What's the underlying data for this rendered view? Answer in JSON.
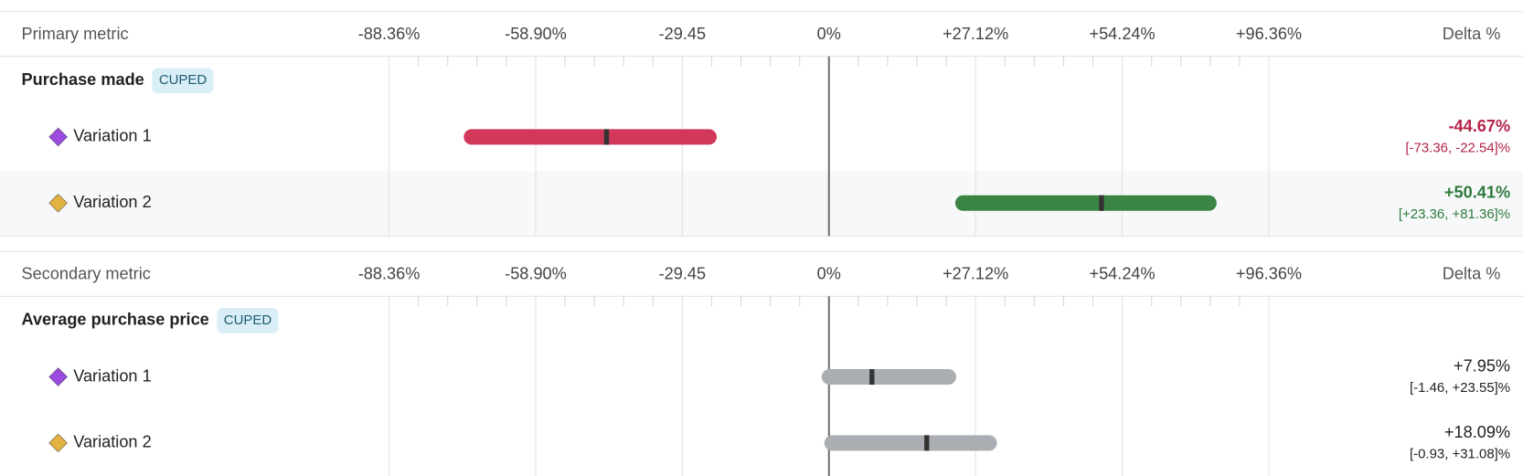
{
  "sections": [
    {
      "header": "Primary metric",
      "delta_header": "Delta %",
      "axis_ticks": [
        {
          "value": -88.36,
          "label": "-88.36%"
        },
        {
          "value": -58.9,
          "label": "-58.90%"
        },
        {
          "value": -29.45,
          "label": "-29.45"
        },
        {
          "value": 0,
          "label": "0%"
        },
        {
          "value": 27.12,
          "label": "+27.12%"
        },
        {
          "value": 54.24,
          "label": "+54.24%"
        },
        {
          "value": 96.36,
          "label": "+96.36%"
        }
      ],
      "metric": {
        "name": "Purchase made",
        "badge": "CUPED"
      },
      "variations": [
        {
          "name": "Variation 1",
          "marker_color": "#9b4be0",
          "bar_color": "#d1385a",
          "text_color": "#b5254a",
          "bold": true,
          "ci": [
            -73.36,
            -22.54
          ],
          "delta": -44.67,
          "delta_label": "-44.67%",
          "ci_label": "[-73.36, -22.54]%"
        },
        {
          "name": "Variation 2",
          "marker_color": "#e3b341",
          "bar_color": "#3a8444",
          "text_color": "#2e7a3b",
          "bold": true,
          "ci": [
            23.36,
            81.36
          ],
          "delta": 50.41,
          "delta_label": "+50.41%",
          "ci_label": "[+23.36, +81.36]%"
        }
      ]
    },
    {
      "header": "Secondary metric",
      "delta_header": "Delta %",
      "axis_ticks": [
        {
          "value": -88.36,
          "label": "-88.36%"
        },
        {
          "value": -58.9,
          "label": "-58.90%"
        },
        {
          "value": -29.45,
          "label": "-29.45"
        },
        {
          "value": 0,
          "label": "0%"
        },
        {
          "value": 27.12,
          "label": "+27.12%"
        },
        {
          "value": 54.24,
          "label": "+54.24%"
        },
        {
          "value": 96.36,
          "label": "+96.36%"
        }
      ],
      "metric": {
        "name": "Average purchase price",
        "badge": "CUPED"
      },
      "variations": [
        {
          "name": "Variation 1",
          "marker_color": "#9b4be0",
          "bar_color": "#aaaeb2",
          "text_color": "#222222",
          "bold": false,
          "ci": [
            -1.46,
            23.55
          ],
          "delta": 7.95,
          "delta_label": "+7.95%",
          "ci_label": "[-1.46, +23.55]%"
        },
        {
          "name": "Variation 2",
          "marker_color": "#e3b341",
          "bar_color": "#aaaeb2",
          "text_color": "#222222",
          "bold": false,
          "ci": [
            -0.93,
            31.08
          ],
          "delta": 18.09,
          "delta_label": "+18.09%",
          "ci_label": "[-0.93, +31.08]%"
        }
      ]
    }
  ]
}
